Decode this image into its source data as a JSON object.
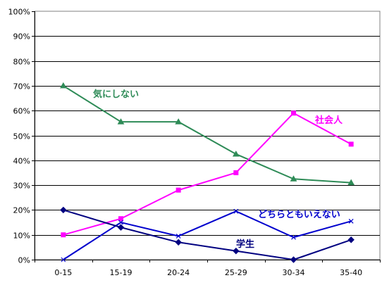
{
  "chart_data": {
    "type": "line",
    "categories": [
      "0-15",
      "15-19",
      "20-24",
      "25-29",
      "30-34",
      "35-40"
    ],
    "y_ticks": [
      "0%",
      "10%",
      "20%",
      "30%",
      "40%",
      "50%",
      "60%",
      "70%",
      "80%",
      "90%",
      "100%"
    ],
    "ylim": [
      0,
      100
    ],
    "grid": true,
    "legend": "none",
    "series": [
      {
        "name": "気にしない",
        "color": "#2e8b57",
        "marker": "triangle",
        "values": [
          70,
          55.5,
          55.5,
          42.5,
          32.5,
          31
        ]
      },
      {
        "name": "社会人",
        "color": "#ff00ff",
        "marker": "square",
        "values": [
          10,
          16.5,
          28,
          35,
          59,
          46.5
        ]
      },
      {
        "name": "どちらともいえない",
        "color": "#0000cd",
        "marker": "x",
        "values": [
          0,
          15,
          9.5,
          19.5,
          9,
          15.5
        ]
      },
      {
        "name": "学生",
        "color": "#000080",
        "marker": "diamond",
        "values": [
          20,
          13,
          7,
          3.5,
          0,
          8
        ]
      }
    ]
  }
}
